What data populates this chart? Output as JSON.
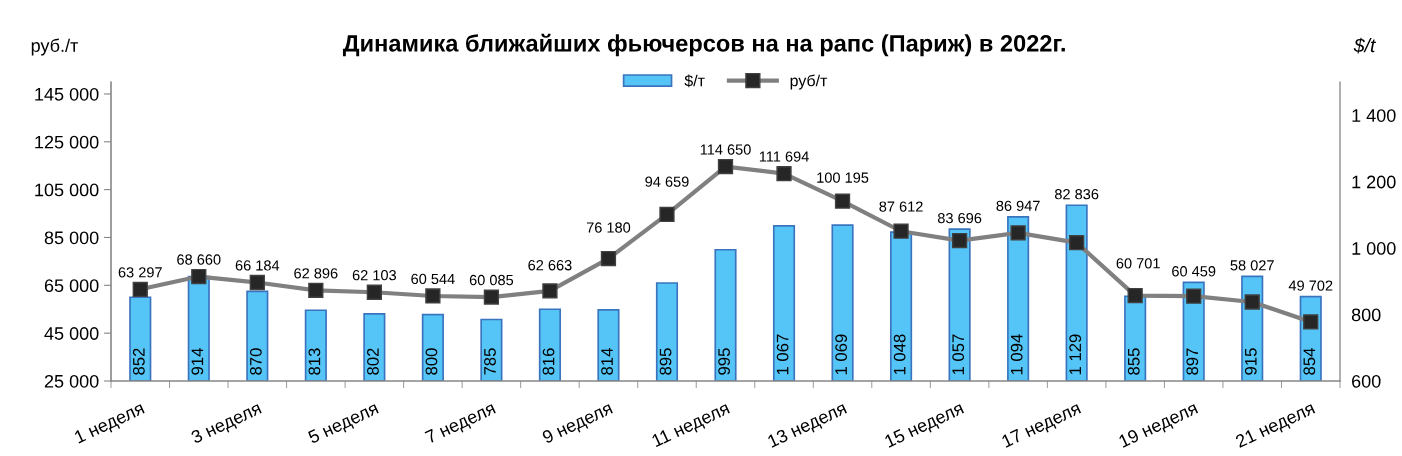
{
  "chart_data": {
    "type": "bar",
    "title": "Динамика ближайших фьючерсов на на рапс (Париж) в 2022г.",
    "ylabel": "руб./т",
    "y2label": "$/t",
    "categories": [
      "1 неделя",
      null,
      "3 неделя",
      null,
      "5 неделя",
      null,
      "7 неделя",
      null,
      "9 неделя",
      null,
      "11 неделя",
      null,
      "13 неделя",
      null,
      "15 неделя",
      null,
      "17 неделя",
      null,
      "19 неделя",
      null,
      "21 неделя"
    ],
    "series": [
      {
        "name": "$/т",
        "axis": "y2",
        "color": "#55c4f6",
        "values": [
          852,
          914,
          870,
          813,
          802,
          800,
          785,
          816,
          814,
          895,
          995,
          1067,
          1069,
          1048,
          1057,
          1094,
          1129,
          855,
          897,
          915,
          854
        ],
        "value_labels": [
          "852",
          "914",
          "870",
          "813",
          "802",
          "800",
          "785",
          "816",
          "814",
          "895",
          "995",
          "1 067",
          "1 069",
          "1 048",
          "1 057",
          "1 094",
          "1 129",
          "855",
          "897",
          "915",
          "854"
        ]
      },
      {
        "name": "руб/т",
        "type": "line",
        "color": "#808080",
        "marker": "square",
        "line_style": "solid",
        "values": [
          63297,
          68660,
          66184,
          62896,
          62103,
          60544,
          60085,
          62663,
          76180,
          94659,
          114650,
          111694,
          100195,
          87612,
          83696,
          86947,
          82836,
          60701,
          60459,
          58027,
          49702
        ],
        "value_labels": [
          "63 297",
          "68 660",
          "66 184",
          "62 896",
          "62 103",
          "60 544",
          "60 085",
          "62 663",
          "76 180",
          "94 659",
          "114 650",
          "111 694",
          "100 195",
          "87 612",
          "83 696",
          "86 947",
          "82 836",
          "60 701",
          "60 459",
          "58 027",
          "49 702"
        ]
      }
    ],
    "ylim": [
      25000,
      150000
    ],
    "yticks": [
      {
        "value": 25000,
        "label": "25 000"
      },
      {
        "value": 45000,
        "label": "45 000"
      },
      {
        "value": 65000,
        "label": "65 000"
      },
      {
        "value": 85000,
        "label": "85 000"
      },
      {
        "value": 105000,
        "label": "105 000"
      },
      {
        "value": 125000,
        "label": "125 000"
      },
      {
        "value": 145000,
        "label": "145 000"
      }
    ],
    "y2lim": [
      600,
      1500
    ],
    "y2ticks": [
      600,
      800,
      {
        "value": 1000,
        "label": "1 000"
      },
      {
        "value": 1200,
        "label": "1 200"
      },
      {
        "value": 1400,
        "label": "1 400"
      }
    ],
    "legend": "top",
    "grid": false
  }
}
